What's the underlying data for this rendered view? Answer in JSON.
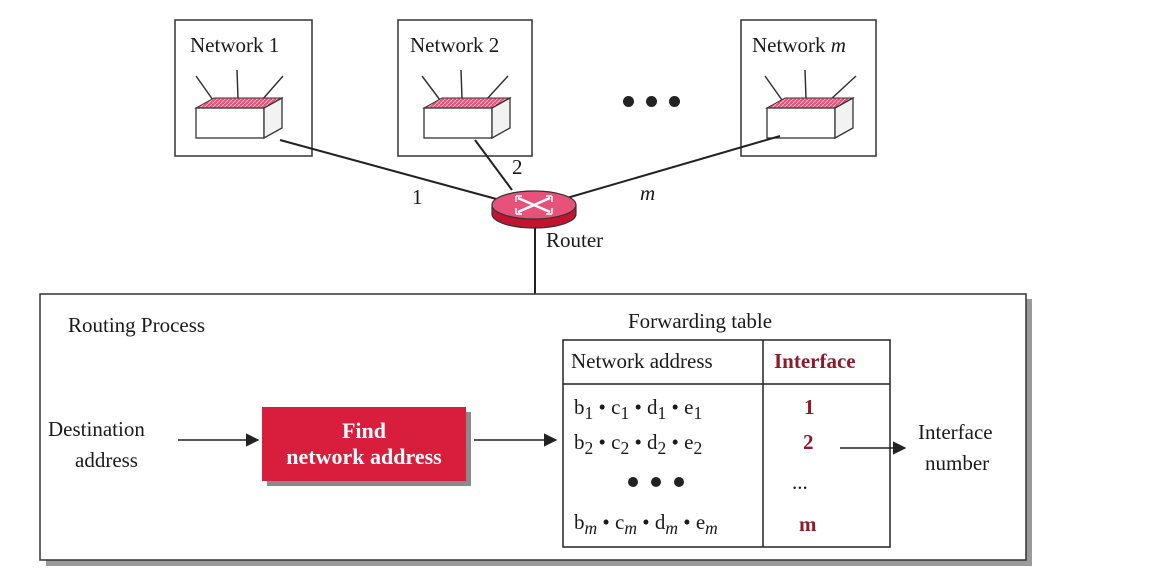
{
  "networks": [
    {
      "title": "Network 1",
      "link_label": "1"
    },
    {
      "title": "Network 2",
      "link_label": "2"
    },
    {
      "title_prefix": "Network ",
      "title_var": "m",
      "link_label": "m"
    }
  ],
  "router_label": "Router",
  "process_title": "Routing Process",
  "input_label_line1": "Destination",
  "input_label_line2": "address",
  "find_box_line1": "Find",
  "find_box_line2": "network address",
  "forwarding_table": {
    "title": "Forwarding table",
    "col_headers": [
      "Network address",
      "Interface"
    ],
    "rows": [
      {
        "address": "b1 • c1 • d1 • e1",
        "interface": "1"
      },
      {
        "address": "b2 • c2 • d2 • e2",
        "interface": "2"
      },
      {
        "address": "• • •",
        "interface": "..."
      },
      {
        "address": "bm • cm • dm • em",
        "interface": "m"
      }
    ]
  },
  "output_label_line1": "Interface",
  "output_label_line2": "number",
  "colors": {
    "accent_red": "#d81e3c",
    "maroon_text": "#8b1a2a",
    "switch_pink": "#e8527a"
  }
}
